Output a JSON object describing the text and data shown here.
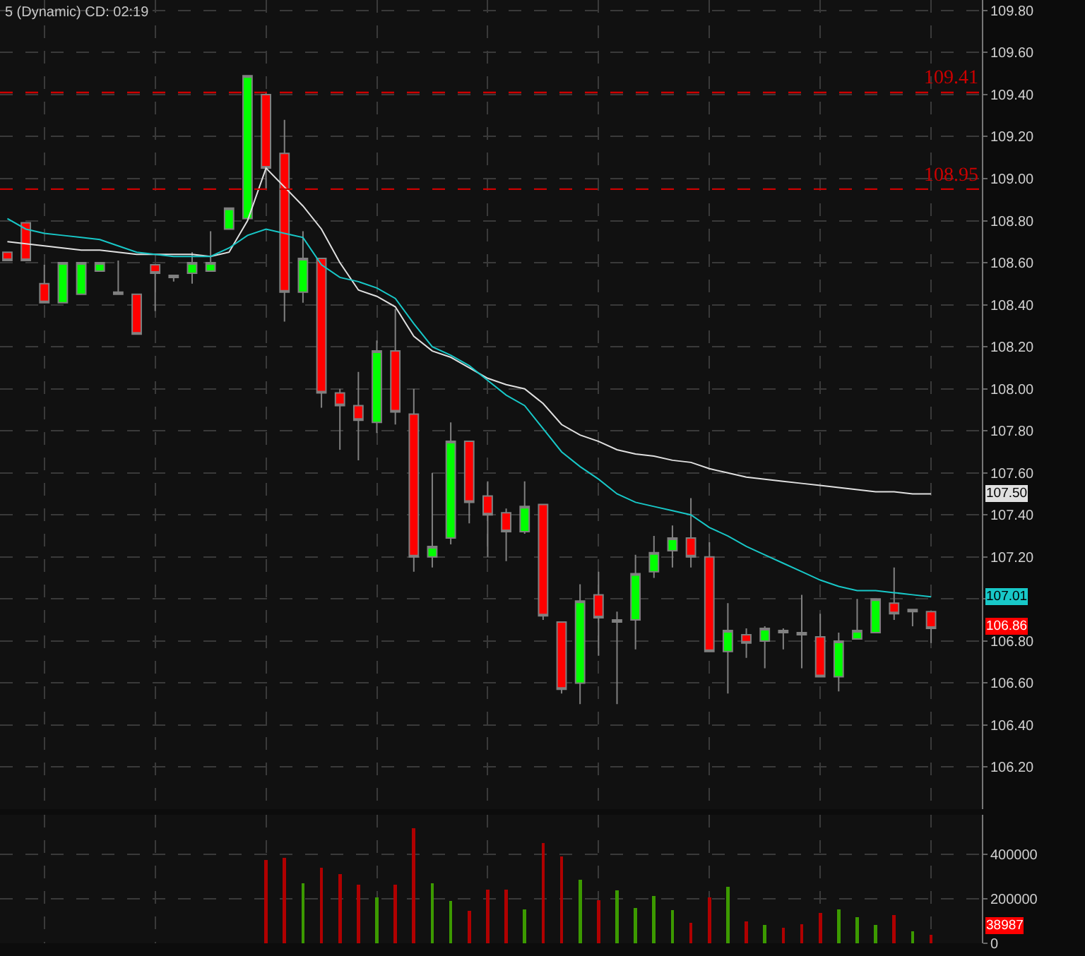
{
  "chart_data": [
    {
      "type": "candlestick",
      "title": "5 (Dynamic) CD: 02:19",
      "categories": [
        null,
        null,
        null,
        null,
        null,
        null,
        null,
        null,
        null,
        null,
        null,
        null,
        null,
        null,
        null,
        null,
        null,
        null,
        null,
        null,
        null,
        null,
        null,
        null,
        null,
        null,
        null,
        null,
        null,
        null,
        null,
        null,
        null,
        null,
        null,
        null,
        null,
        null,
        null,
        null,
        null,
        null,
        null,
        null,
        null,
        null,
        null,
        null,
        null,
        null,
        null
      ],
      "ohlc": [
        [
          108.65,
          108.65,
          108.61,
          108.61
        ],
        [
          108.79,
          108.79,
          108.61,
          108.61
        ],
        [
          108.5,
          108.59,
          108.41,
          108.41
        ],
        [
          108.41,
          108.6,
          108.41,
          108.6
        ],
        [
          108.45,
          108.6,
          108.45,
          108.6
        ],
        [
          108.56,
          108.6,
          108.56,
          108.6
        ],
        [
          108.46,
          108.61,
          108.45,
          108.45
        ],
        [
          108.45,
          108.45,
          108.26,
          108.26
        ],
        [
          108.59,
          108.59,
          108.37,
          108.55
        ],
        [
          108.54,
          108.54,
          108.51,
          108.53
        ],
        [
          108.55,
          108.65,
          108.5,
          108.6
        ],
        [
          108.56,
          108.75,
          108.56,
          108.6
        ],
        [
          108.76,
          108.86,
          108.76,
          108.86
        ],
        [
          108.81,
          109.49,
          108.81,
          109.49
        ],
        [
          109.4,
          109.41,
          108.95,
          109.05
        ],
        [
          109.12,
          109.28,
          108.32,
          108.46
        ],
        [
          108.46,
          108.75,
          108.41,
          108.62
        ],
        [
          108.62,
          108.62,
          107.91,
          107.98
        ],
        [
          107.98,
          108.0,
          107.71,
          107.92
        ],
        [
          107.92,
          108.08,
          107.66,
          107.85
        ],
        [
          107.84,
          108.23,
          107.79,
          108.18
        ],
        [
          108.18,
          108.38,
          107.83,
          107.89
        ],
        [
          107.88,
          108.0,
          107.13,
          107.2
        ],
        [
          107.2,
          107.6,
          107.15,
          107.25
        ],
        [
          107.29,
          107.84,
          107.26,
          107.75
        ],
        [
          107.75,
          107.75,
          107.36,
          107.46
        ],
        [
          107.49,
          107.56,
          107.2,
          107.4
        ],
        [
          107.41,
          107.43,
          107.18,
          107.32
        ],
        [
          107.32,
          107.56,
          107.31,
          107.44
        ],
        [
          107.45,
          107.45,
          106.9,
          106.92
        ],
        [
          106.89,
          106.89,
          106.55,
          106.57
        ],
        [
          106.6,
          107.07,
          106.5,
          106.99
        ],
        [
          107.02,
          107.13,
          106.73,
          106.91
        ],
        [
          106.9,
          106.94,
          106.5,
          106.89
        ],
        [
          106.9,
          107.21,
          106.76,
          107.12
        ],
        [
          107.13,
          107.3,
          107.1,
          107.22
        ],
        [
          107.23,
          107.35,
          107.15,
          107.29
        ],
        [
          107.29,
          107.48,
          107.15,
          107.2
        ],
        [
          107.2,
          107.27,
          106.75,
          106.75
        ],
        [
          106.75,
          106.98,
          106.55,
          106.85
        ],
        [
          106.83,
          106.86,
          106.72,
          106.79
        ],
        [
          106.8,
          106.87,
          106.67,
          106.86
        ],
        [
          106.85,
          106.86,
          106.76,
          106.84
        ],
        [
          106.84,
          107.02,
          106.67,
          106.83
        ],
        [
          106.82,
          106.93,
          106.63,
          106.63
        ],
        [
          106.63,
          106.84,
          106.56,
          106.8
        ],
        [
          106.81,
          107.0,
          106.81,
          106.85
        ],
        [
          106.84,
          107.0,
          106.84,
          107.0
        ],
        [
          106.98,
          107.15,
          106.9,
          106.93
        ],
        [
          106.95,
          106.95,
          106.87,
          106.94
        ],
        [
          106.94,
          106.94,
          106.79,
          106.86
        ]
      ],
      "series": [
        {
          "type": "line",
          "color": "#e0e0e0",
          "values": [
            108.7,
            108.69,
            108.68,
            108.67,
            108.66,
            108.66,
            108.65,
            108.64,
            108.64,
            108.64,
            108.64,
            108.63,
            108.65,
            108.8,
            109.05,
            108.96,
            108.87,
            108.76,
            108.6,
            108.47,
            108.44,
            108.39,
            108.25,
            108.18,
            108.15,
            108.1,
            108.05,
            108.02,
            108.0,
            107.93,
            107.83,
            107.78,
            107.75,
            107.71,
            107.69,
            107.68,
            107.66,
            107.65,
            107.62,
            107.6,
            107.58,
            107.57,
            107.56,
            107.55,
            107.54,
            107.53,
            107.52,
            107.51,
            107.51,
            107.5,
            107.5
          ]
        },
        {
          "type": "line",
          "color": "#18c8c8",
          "values": [
            108.81,
            108.76,
            108.74,
            108.73,
            108.72,
            108.71,
            108.68,
            108.65,
            108.64,
            108.63,
            108.63,
            108.63,
            108.67,
            108.73,
            108.76,
            108.74,
            108.72,
            108.59,
            108.53,
            108.51,
            108.48,
            108.43,
            108.31,
            108.2,
            108.16,
            108.11,
            108.04,
            107.97,
            107.92,
            107.81,
            107.7,
            107.63,
            107.57,
            107.5,
            107.46,
            107.44,
            107.42,
            107.4,
            107.34,
            107.3,
            107.25,
            107.21,
            107.17,
            107.13,
            107.09,
            107.06,
            107.04,
            107.04,
            107.03,
            107.02,
            107.01
          ]
        }
      ],
      "ylim": [
        106.0,
        109.85
      ],
      "yticks": [
        {
          "value": 106.2,
          "label": "106.20"
        },
        {
          "value": 106.4,
          "label": "106.40"
        },
        {
          "value": 106.6,
          "label": "106.60"
        },
        {
          "value": 106.8,
          "label": "106.80"
        },
        {
          "value": 107.0,
          "label": null
        },
        {
          "value": 107.2,
          "label": "107.20"
        },
        {
          "value": 107.4,
          "label": "107.40"
        },
        {
          "value": 107.6,
          "label": "107.60"
        },
        {
          "value": 107.8,
          "label": "107.80"
        },
        {
          "value": 108.0,
          "label": "108.00"
        },
        {
          "value": 108.2,
          "label": "108.20"
        },
        {
          "value": 108.4,
          "label": "108.40"
        },
        {
          "value": 108.6,
          "label": "108.60"
        },
        {
          "value": 108.8,
          "label": "108.80"
        },
        {
          "value": 109.0,
          "label": "109.00"
        },
        {
          "value": 109.2,
          "label": "109.20"
        },
        {
          "value": 109.4,
          "label": "109.40"
        },
        {
          "value": 109.6,
          "label": "109.60"
        },
        {
          "value": 109.8,
          "label": "109.80"
        }
      ],
      "ref_lines": [
        {
          "axis": "y",
          "value": 109.41,
          "label": "109.41",
          "color": "#cc0000",
          "line_style": "dashed"
        },
        {
          "axis": "y",
          "value": 108.95,
          "label": "108.95",
          "color": "#cc0000",
          "line_style": "dashed"
        }
      ],
      "annotations": [
        "107.50",
        "107.01",
        "106.86"
      ],
      "grid": true,
      "tick_labels": "y"
    },
    {
      "type": "bar",
      "categories": [
        null,
        null,
        null,
        null,
        null,
        null,
        null,
        null,
        null,
        null,
        null,
        null,
        null,
        null,
        null,
        null,
        null,
        null,
        null,
        null,
        null,
        null,
        null,
        null,
        null,
        null,
        null,
        null,
        null,
        null,
        null,
        null,
        null,
        null,
        null,
        null,
        null,
        null,
        null,
        null,
        null,
        null,
        null,
        null,
        null,
        null,
        null,
        null,
        null,
        null,
        null
      ],
      "values": [
        null,
        null,
        null,
        null,
        null,
        null,
        null,
        null,
        null,
        null,
        null,
        null,
        null,
        null,
        377000,
        385000,
        272000,
        342000,
        312000,
        266000,
        207000,
        266000,
        520000,
        272000,
        190000,
        146000,
        242000,
        242000,
        152000,
        453000,
        391000,
        286000,
        196000,
        239000,
        158000,
        213000,
        149000,
        91000,
        207000,
        254000,
        99000,
        82000,
        70000,
        85000,
        137000,
        152000,
        117000,
        82000,
        126000,
        53000,
        38987
      ],
      "colors": [
        null,
        null,
        null,
        null,
        null,
        null,
        null,
        null,
        null,
        null,
        null,
        null,
        null,
        null,
        "#b00000",
        "#b00000",
        "#3c9a00",
        "#b00000",
        "#b00000",
        "#b00000",
        "#3c9a00",
        "#b00000",
        "#b00000",
        "#3c9a00",
        "#3c9a00",
        "#b00000",
        "#b00000",
        "#b00000",
        "#3c9a00",
        "#b00000",
        "#b00000",
        "#3c9a00",
        "#b00000",
        "#3c9a00",
        "#3c9a00",
        "#3c9a00",
        "#3c9a00",
        "#b00000",
        "#b00000",
        "#3c9a00",
        "#b00000",
        "#3c9a00",
        "#b00000",
        "#b00000",
        "#b00000",
        "#3c9a00",
        "#3c9a00",
        "#3c9a00",
        "#b00000",
        "#3c9a00",
        "#b00000"
      ],
      "ylim": [
        0,
        580000
      ],
      "yticks": [
        0,
        200000,
        400000
      ],
      "annotations": [
        "38987"
      ],
      "grid": true,
      "tick_labels": "y"
    }
  ]
}
